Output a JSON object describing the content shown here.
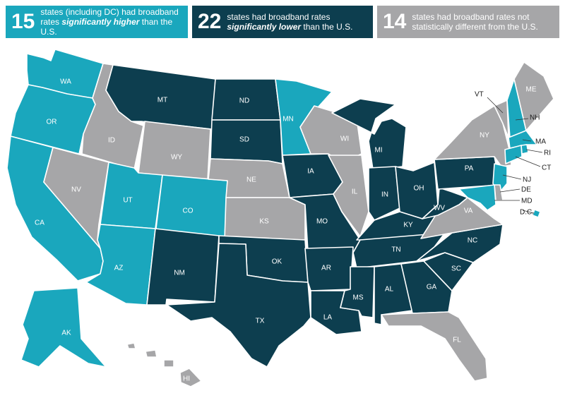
{
  "colors": {
    "higher": "#1aa7bd",
    "lower": "#0d3e4f",
    "not_different": "#a6a6a8"
  },
  "legend": {
    "higher": {
      "count": "15",
      "line1": "states (including DC) had broadband",
      "line2_pre": "rates ",
      "line2_em": "significantly higher",
      "line2_post": " than the U.S."
    },
    "lower": {
      "count": "22",
      "line1": "states had broadband rates",
      "line2_pre": "",
      "line2_em": "significantly lower",
      "line2_post": " than the U.S."
    },
    "not_different": {
      "count": "14",
      "line1": "states had broadband rates not",
      "line2_pre": "statistically different from the U.S.",
      "line2_em": "",
      "line2_post": ""
    }
  },
  "states": {
    "WA": "higher",
    "OR": "higher",
    "CA": "higher",
    "UT": "higher",
    "CO": "higher",
    "AZ": "higher",
    "AK": "higher",
    "MN": "higher",
    "NH": "higher",
    "MA": "higher",
    "RI": "higher",
    "CT": "higher",
    "NJ": "higher",
    "MD": "higher",
    "DC": "higher",
    "MT": "lower",
    "ND": "lower",
    "SD": "lower",
    "NM": "lower",
    "TX": "lower",
    "OK": "lower",
    "IA": "lower",
    "MO": "lower",
    "AR": "lower",
    "LA": "lower",
    "MS": "lower",
    "AL": "lower",
    "TN": "lower",
    "KY": "lower",
    "IN": "lower",
    "MI": "lower",
    "OH": "lower",
    "WV": "lower",
    "PA": "lower",
    "NC": "lower",
    "SC": "lower",
    "GA": "lower",
    "ID": "not_different",
    "NV": "not_different",
    "WY": "not_different",
    "NE": "not_different",
    "KS": "not_different",
    "WI": "not_different",
    "IL": "not_different",
    "VA": "not_different",
    "NY": "not_different",
    "VT": "not_different",
    "ME": "not_different",
    "FL": "not_different",
    "HI": "not_different",
    "DE": "not_different"
  },
  "labels": {
    "WA": "WA",
    "OR": "OR",
    "CA": "CA",
    "ID": "ID",
    "NV": "NV",
    "MT": "MT",
    "WY": "WY",
    "UT": "UT",
    "CO": "CO",
    "AZ": "AZ",
    "NM": "NM",
    "ND": "ND",
    "SD": "SD",
    "NE": "NE",
    "KS": "KS",
    "OK": "OK",
    "TX": "TX",
    "MN": "MN",
    "IA": "IA",
    "MO": "MO",
    "AR": "AR",
    "LA": "LA",
    "WI": "WI",
    "IL": "IL",
    "MI": "MI",
    "IN": "IN",
    "OH": "OH",
    "KY": "KY",
    "TN": "TN",
    "MS": "MS",
    "AL": "AL",
    "GA": "GA",
    "FL": "FL",
    "SC": "SC",
    "NC": "NC",
    "VA": "VA",
    "WV": "WV",
    "PA": "PA",
    "NY": "NY",
    "VT": "VT",
    "ME": "ME",
    "NH": "NH",
    "MA": "MA",
    "RI": "RI",
    "CT": "CT",
    "NJ": "NJ",
    "DE": "DE",
    "MD": "MD",
    "DC": "D.C.",
    "AK": "AK",
    "HI": "HI"
  }
}
